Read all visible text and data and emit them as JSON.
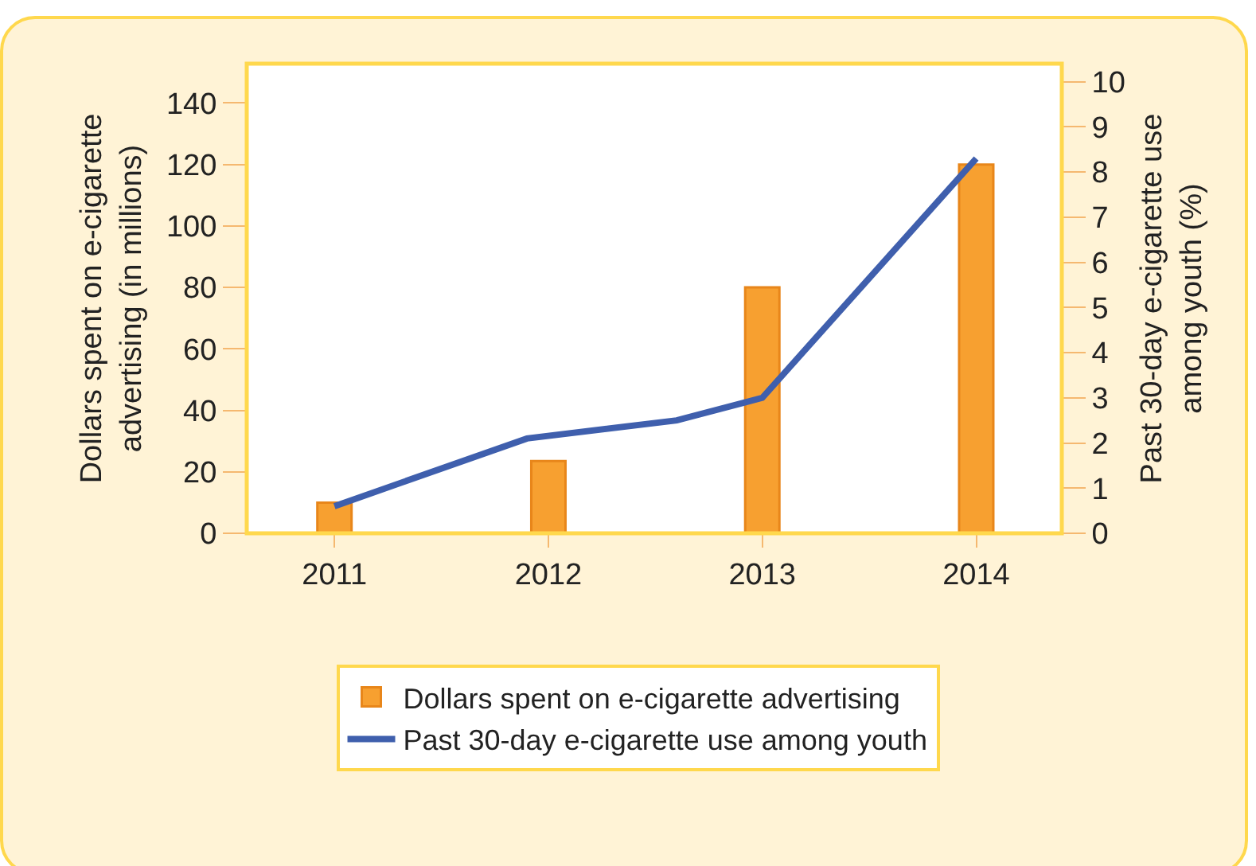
{
  "chart_data": {
    "type": "bar",
    "x": [
      2011,
      2012,
      2013,
      2014
    ],
    "xlim": [
      2010.59,
      2014.4
    ],
    "xticks": [
      2011,
      2012,
      2013,
      2014
    ],
    "ylabel": "Dollars spent on e-cigarette\nadvertising (in millions)",
    "y2label": "Past 30-day e-cigarette use\namong youth (%)",
    "ylim": [
      0,
      152.8
    ],
    "yticks": [
      0,
      20,
      40,
      60,
      80,
      100,
      120,
      140
    ],
    "y2lim": [
      0,
      10.4
    ],
    "y2ticks": [
      0,
      1,
      2,
      3,
      4,
      5,
      6,
      7,
      8,
      9,
      10
    ],
    "series": [
      {
        "name": "Dollars spent on e-cigarette advertising",
        "color": "#f7a030",
        "values": [
          10,
          23.5,
          80,
          120
        ]
      },
      {
        "name": "Past 30-day e-cigarette use among youth",
        "type": "line",
        "axis": "y2",
        "color": "#3f5fad",
        "x": [
          2011,
          2011.9,
          2012.6,
          2013,
          2014
        ],
        "values": [
          0.6,
          2.1,
          2.5,
          3.0,
          8.3
        ]
      }
    ],
    "grid": false,
    "legend": "bottom",
    "marker": "none",
    "line_style": "solid"
  }
}
